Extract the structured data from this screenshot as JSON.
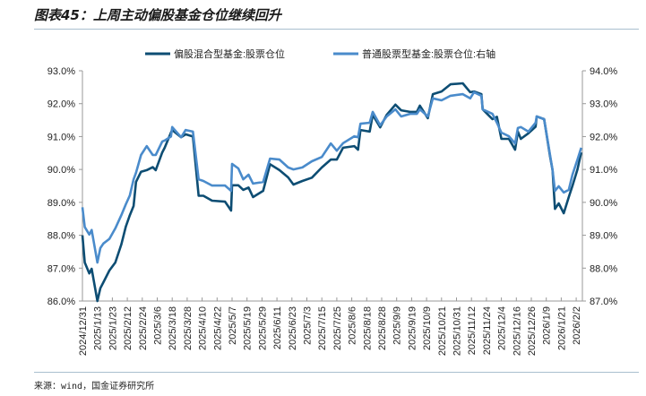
{
  "header": {
    "title": "图表45：上周主动偏股基金仓位继续回升"
  },
  "footer": {
    "source": "来源：wind，国金证券研究所"
  },
  "colors": {
    "series_dark": "#0d4d73",
    "series_light": "#4a8bcb",
    "axis": "#999999",
    "rule": "#a9bfcf"
  },
  "chart_data": {
    "type": "line",
    "title": "",
    "legend_position": "top-center",
    "grid": false,
    "y_left": {
      "range": [
        86,
        93
      ],
      "ticks": [
        "86.0%",
        "87.0%",
        "88.0%",
        "89.0%",
        "90.0%",
        "91.0%",
        "92.0%",
        "93.0%"
      ]
    },
    "y_right": {
      "range": [
        87,
        94
      ],
      "ticks": [
        "87.0%",
        "88.0%",
        "89.0%",
        "90.0%",
        "91.0%",
        "92.0%",
        "93.0%",
        "94.0%"
      ]
    },
    "x_ticks": [
      "2024/12/31",
      "2025/1/13",
      "2025/1/23",
      "2025/2/12",
      "2025/2/24",
      "2025/3/6",
      "2025/3/18",
      "2025/3/28",
      "2025/4/10",
      "2025/4/22",
      "2025/5/7",
      "2025/5/19",
      "2025/5/29",
      "2025/6/11",
      "2025/6/23",
      "2025/7/3",
      "2025/7/15",
      "2025/7/25",
      "2025/8/6",
      "2025/8/18",
      "2025/8/28",
      "2025/9/9",
      "2025/9/19",
      "2025/10/9",
      "2025/10/21",
      "2025/10/31",
      "2025/11/12",
      "2025/11/24",
      "2025/12/4",
      "2025/12/16",
      "2025/12/26",
      "2026/1/9",
      "2026/1/21",
      "2026/2/2"
    ],
    "x": [
      "2024/12/31",
      "2025/1/2",
      "2025/1/6",
      "2025/1/8",
      "2025/1/13",
      "2025/1/15",
      "2025/1/17",
      "2025/1/21",
      "2025/1/27",
      "2025/2/4",
      "2025/2/10",
      "2025/2/14",
      "2025/2/17",
      "2025/2/19",
      "2025/2/23",
      "2025/2/27",
      "2025/3/3",
      "2025/3/5",
      "2025/3/10",
      "2025/3/12",
      "2025/3/17",
      "2025/3/18",
      "2025/3/24",
      "2025/3/27",
      "2025/4/2",
      "2025/4/7",
      "2025/4/11",
      "2025/4/18",
      "2025/4/30",
      "2025/5/6",
      "2025/5/7",
      "2025/5/12",
      "2025/5/16",
      "2025/5/20",
      "2025/5/23",
      "2025/5/30",
      "2025/6/5",
      "2025/6/13",
      "2025/6/20",
      "2025/6/24",
      "2025/6/30",
      "2025/7/7",
      "2025/7/15",
      "2025/7/21",
      "2025/7/25",
      "2025/7/30",
      "2025/8/8",
      "2025/8/11",
      "2025/8/13",
      "2025/8/20",
      "2025/8/22",
      "2025/8/27",
      "2025/9/1",
      "2025/9/8",
      "2025/9/12",
      "2025/9/18",
      "2025/9/26",
      "2025/9/30",
      "2025/10/10",
      "2025/10/14",
      "2025/10/21",
      "2025/10/27",
      "2025/11/5",
      "2025/11/11",
      "2025/11/14",
      "2025/11/20",
      "2025/11/21",
      "2025/11/28",
      "2025/12/1",
      "2025/12/4",
      "2025/12/10",
      "2025/12/15",
      "2025/12/17",
      "2025/12/19",
      "2025/12/24",
      "2025/12/30",
      "2025/12/31",
      "2026/1/7",
      "2026/1/12",
      "2026/1/14",
      "2026/1/16",
      "2026/1/19",
      "2026/1/23",
      "2026/1/27",
      "2026/1/30",
      "2026/2/3",
      "2026/2/6"
    ],
    "series": [
      {
        "name": "偏股混合型基金:股票仓位",
        "axis": "left",
        "values": [
          88.0,
          87.17,
          86.84,
          86.98,
          86.0,
          86.39,
          86.57,
          86.93,
          87.17,
          87.72,
          88.26,
          88.61,
          88.89,
          89.62,
          89.93,
          89.98,
          90.07,
          89.98,
          90.52,
          90.66,
          91.12,
          91.2,
          90.98,
          91.07,
          91.0,
          89.2,
          89.2,
          89.05,
          89.02,
          88.75,
          89.52,
          89.52,
          89.38,
          89.45,
          89.16,
          89.35,
          90.16,
          89.98,
          89.76,
          89.54,
          89.65,
          89.75,
          90.06,
          90.3,
          90.3,
          90.66,
          90.71,
          90.6,
          91.2,
          91.15,
          91.66,
          91.28,
          91.66,
          91.97,
          91.8,
          91.75,
          91.75,
          91.94,
          91.56,
          92.29,
          92.37,
          92.59,
          92.62,
          92.35,
          92.37,
          92.29,
          91.83,
          91.53,
          91.6,
          90.93,
          90.93,
          90.6,
          91.15,
          90.93,
          91.1,
          91.3,
          91.61,
          91.53,
          90.4,
          89.98,
          88.8,
          88.97,
          88.67,
          89.16,
          89.5,
          90.0,
          90.52
        ]
      },
      {
        "name": "普通股票型基金:股票仓位:右轴",
        "axis": "right",
        "values": [
          89.85,
          89.25,
          89.02,
          89.16,
          88.17,
          88.61,
          88.75,
          88.89,
          89.21,
          89.61,
          89.94,
          90.21,
          90.7,
          90.9,
          91.44,
          91.71,
          91.44,
          91.44,
          91.85,
          91.88,
          92.0,
          92.29,
          91.98,
          92.2,
          92.15,
          90.7,
          90.65,
          90.51,
          90.51,
          90.35,
          91.17,
          91.03,
          90.7,
          90.84,
          90.57,
          90.62,
          91.33,
          91.3,
          91.06,
          91.0,
          91.06,
          91.25,
          91.38,
          91.79,
          91.57,
          91.8,
          92.01,
          91.98,
          92.39,
          92.42,
          92.75,
          92.34,
          92.61,
          92.83,
          92.61,
          92.69,
          92.69,
          92.83,
          92.61,
          93.16,
          93.1,
          93.24,
          93.29,
          93.16,
          93.35,
          93.24,
          92.83,
          92.69,
          92.42,
          92.12,
          92.01,
          91.79,
          92.26,
          92.29,
          92.15,
          92.42,
          92.61,
          92.53,
          91.44,
          90.98,
          90.35,
          90.49,
          90.3,
          90.38,
          90.84,
          91.3,
          91.66
        ]
      }
    ]
  }
}
